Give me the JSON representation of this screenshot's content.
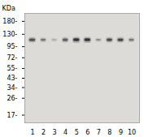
{
  "chart_data": {
    "type": "blot",
    "ylabel": "KDa",
    "x": [
      1,
      2,
      3,
      4,
      5,
      6,
      7,
      8,
      9,
      10
    ],
    "values": [
      112,
      112,
      112,
      112,
      112,
      112,
      112,
      112,
      112,
      112
    ],
    "widths": [
      0.55,
      0.45,
      0.45,
      0.48,
      0.55,
      0.55,
      0.45,
      0.5,
      0.52,
      0.45
    ],
    "heights": [
      7,
      6,
      5,
      7,
      8,
      8,
      5,
      7,
      7,
      6
    ],
    "colors": [
      "#4c4c4c",
      "#737373",
      "#adadad",
      "#595959",
      "#2e2e2e",
      "#2e2e2e",
      "#8c8c8c",
      "#474747",
      "#404040",
      "#737373"
    ],
    "xlim": [
      0.3,
      10.7
    ],
    "xticks": [
      1,
      2,
      3,
      4,
      5,
      6,
      7,
      8,
      9,
      10
    ],
    "ylim": [
      14,
      220
    ],
    "yticks": [
      {
        "value": 180,
        "label": "180-"
      },
      {
        "value": 130,
        "label": "130-"
      },
      {
        "value": 95,
        "label": "95-"
      },
      {
        "value": 72,
        "label": "72-"
      },
      {
        "value": 55,
        "label": "55-"
      },
      {
        "value": 43,
        "label": "43-"
      },
      {
        "value": 34,
        "label": "34-"
      },
      {
        "value": 26,
        "label": "26-"
      },
      {
        "value": 17,
        "label": "17-"
      }
    ],
    "log": "y",
    "grid": false
  }
}
